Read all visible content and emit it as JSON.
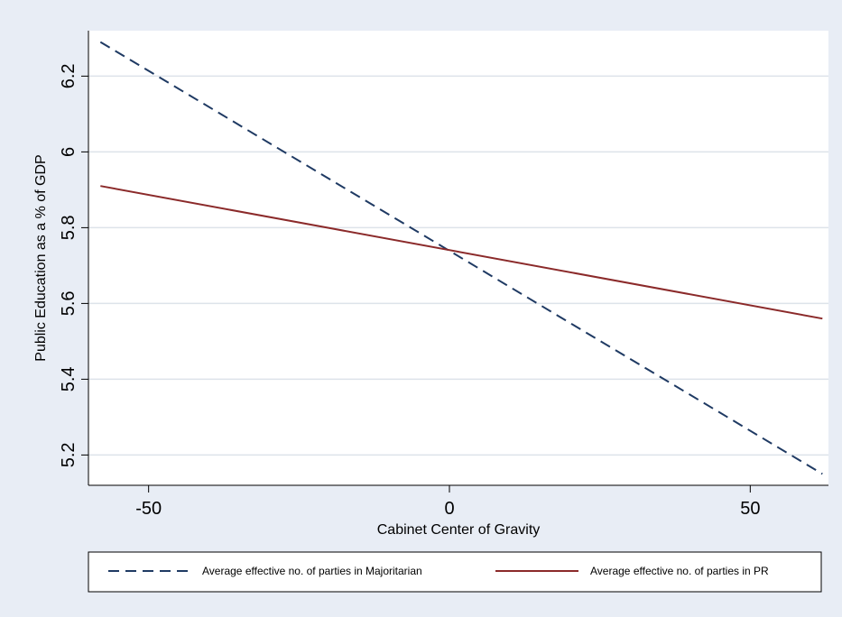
{
  "chart_data": {
    "type": "line",
    "title": "",
    "xlabel": "Cabinet Center of Gravity",
    "ylabel": "Public Education as a % of GDP",
    "xlim": [
      -60,
      63
    ],
    "ylim": [
      5.12,
      6.32
    ],
    "xticks": [
      -50,
      0,
      50
    ],
    "yticks": [
      5.2,
      5.4,
      5.6,
      5.8,
      6,
      6.2
    ],
    "grid": "horizontal",
    "legend_position": "bottom",
    "series": [
      {
        "name": "Average effective no. of parties in Majoritarian",
        "style": "dashed",
        "color": "#1f3a63",
        "x": [
          -58,
          62
        ],
        "y": [
          6.29,
          5.15
        ]
      },
      {
        "name": "Average effective no. of parties in PR",
        "style": "solid",
        "color": "#8b2a2a",
        "x": [
          -58,
          62
        ],
        "y": [
          5.91,
          5.56
        ]
      }
    ]
  },
  "colors": {
    "background": "#e8edf5",
    "plot_background": "#ffffff",
    "grid": "#dde3ea"
  }
}
